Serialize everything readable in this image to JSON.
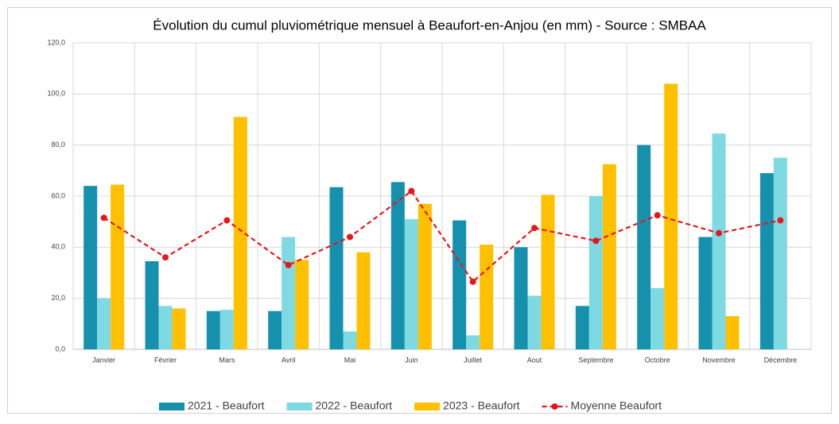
{
  "chart_data": {
    "type": "bar",
    "title": "Évolution du cumul pluviométrique mensuel à Beaufort-en-Anjou (en mm) - Source : SMBAA",
    "categories": [
      "Janvier",
      "Février",
      "Mars",
      "Avril",
      "Mai",
      "Juin",
      "Juillet",
      "Aout",
      "Septembre",
      "Octobre",
      "Novembre",
      "Décembre"
    ],
    "series": [
      {
        "name": "2021 - Beaufort",
        "type": "bar",
        "color": "#1591ad",
        "values": [
          64,
          34.5,
          15,
          15,
          63.5,
          65.5,
          50.5,
          40,
          17,
          80,
          44,
          69
        ]
      },
      {
        "name": "2022 - Beaufort",
        "type": "bar",
        "color": "#7fd9e3",
        "values": [
          20,
          17,
          15.5,
          44,
          7,
          51,
          5.5,
          21,
          60,
          24,
          84.5,
          75
        ]
      },
      {
        "name": "2023 - Beaufort",
        "type": "bar",
        "color": "#ffc000",
        "values": [
          64.5,
          16,
          91,
          35,
          38,
          57,
          41,
          60.5,
          72.5,
          104,
          13,
          null
        ]
      },
      {
        "name": "Moyenne Beaufort",
        "type": "line",
        "color": "#e8161b",
        "values": [
          51.5,
          36,
          50.5,
          33,
          44,
          62,
          26.5,
          47.5,
          42.5,
          52.5,
          45.5,
          50.5
        ]
      }
    ],
    "ylim": [
      0,
      120
    ],
    "yticks": [
      {
        "value": 0,
        "label": "0,0"
      },
      {
        "value": 20,
        "label": "20,0"
      },
      {
        "value": 40,
        "label": "40,0"
      },
      {
        "value": 60,
        "label": "60,0"
      },
      {
        "value": 80,
        "label": "80,0"
      },
      {
        "value": 100,
        "label": "100,0"
      },
      {
        "value": 120,
        "label": "120,0"
      }
    ],
    "grid": true,
    "legend": "bottom"
  }
}
